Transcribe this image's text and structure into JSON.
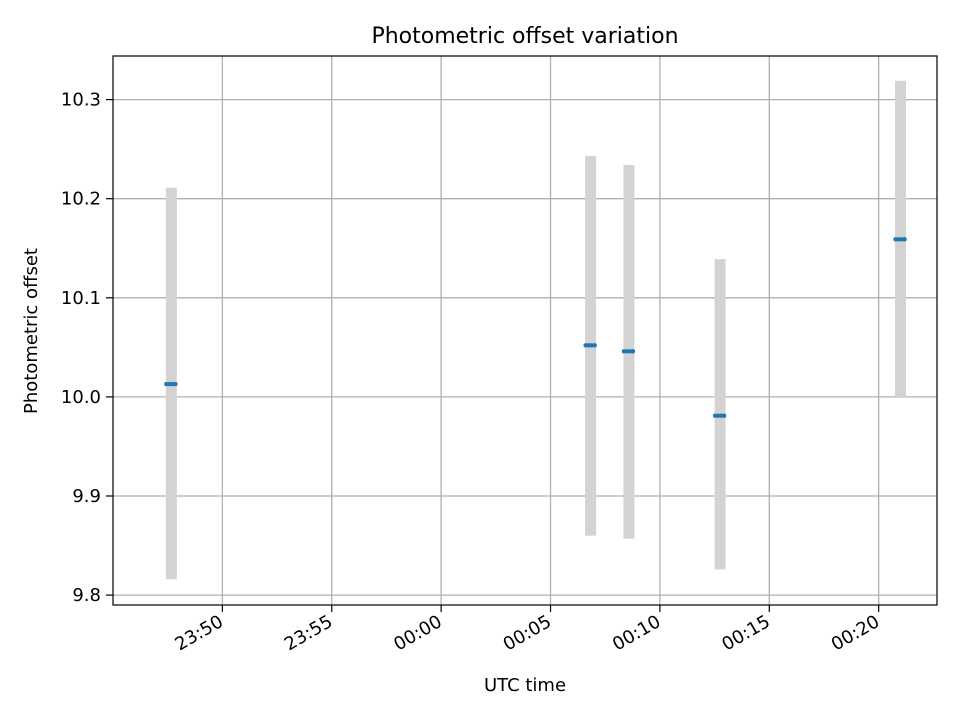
{
  "chart_data": {
    "type": "scatter",
    "title": "Photometric offset variation",
    "xlabel": "UTC time",
    "ylabel": "Photometric offset",
    "x_axis_kind": "time",
    "xlim": [
      "23:45:00",
      "00:22:40"
    ],
    "ylim": [
      9.79,
      10.344
    ],
    "x_ticks": [
      "23:50",
      "23:55",
      "00:00",
      "00:05",
      "00:10",
      "00:15",
      "00:20"
    ],
    "y_ticks": [
      "9.8",
      "9.9",
      "10.0",
      "10.1",
      "10.2",
      "10.3"
    ],
    "grid": true,
    "series": [
      {
        "marker_color": "#1f77b4",
        "error_color": "#d3d3d3",
        "points": [
          {
            "x": "23:47:40",
            "y": 10.013,
            "err_low": 9.816,
            "err_high": 10.211
          },
          {
            "x": "00:06:50",
            "y": 10.052,
            "err_low": 9.86,
            "err_high": 10.243
          },
          {
            "x": "00:08:35",
            "y": 10.046,
            "err_low": 9.857,
            "err_high": 10.234
          },
          {
            "x": "00:12:45",
            "y": 9.981,
            "err_low": 9.826,
            "err_high": 10.139
          },
          {
            "x": "00:21:00",
            "y": 10.159,
            "err_low": 9.999,
            "err_high": 10.319
          }
        ]
      }
    ]
  }
}
